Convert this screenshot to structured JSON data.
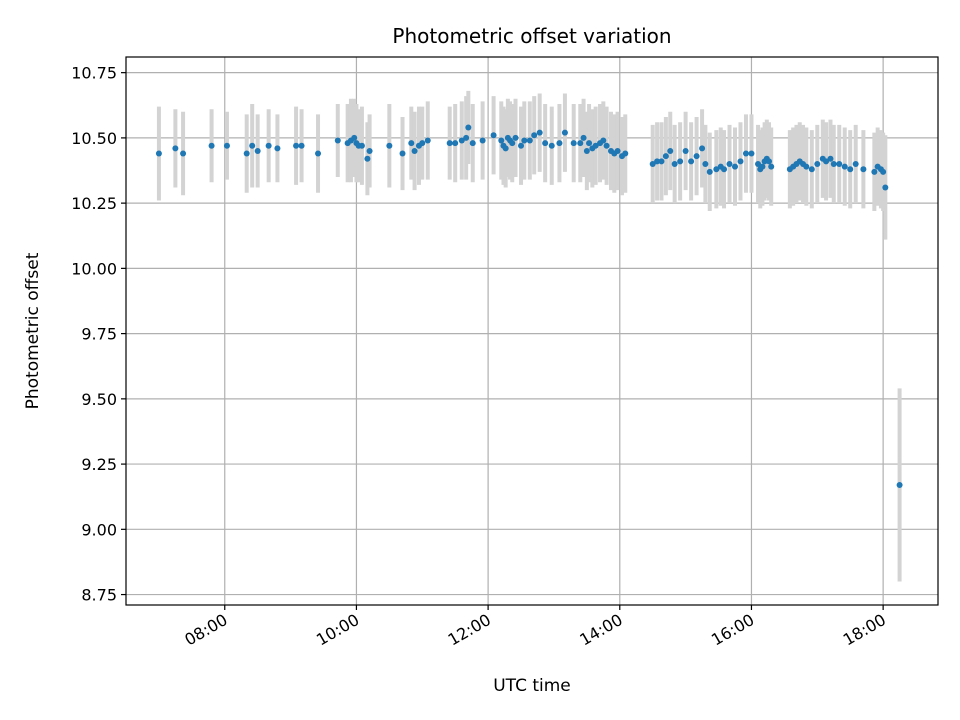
{
  "chart_data": {
    "type": "scatter",
    "title": "Photometric offset variation",
    "xlabel": "UTC time",
    "ylabel": "Photometric offset",
    "x_tick_labels": [
      "08:00",
      "10:00",
      "12:00",
      "14:00",
      "16:00",
      "18:00"
    ],
    "y_tick_labels": [
      "8.75",
      "9.00",
      "9.25",
      "9.50",
      "9.75",
      "10.00",
      "10.25",
      "10.50",
      "10.75"
    ],
    "xlim": [
      "06:30",
      "18:50"
    ],
    "ylim": [
      8.71,
      10.81
    ],
    "grid": true,
    "colors": {
      "point": "#1f77b4",
      "errorbar": "#d3d3d3",
      "grid": "#b0b0b0"
    },
    "series": [
      {
        "x": [
          "07:00",
          "07:15",
          "07:22",
          "07:48",
          "08:02",
          "08:20",
          "08:25",
          "08:30",
          "08:40",
          "08:48",
          "09:05",
          "09:10",
          "09:25",
          "09:43",
          "09:52",
          "09:55",
          "09:58",
          "10:00",
          "10:02",
          "10:05",
          "10:10",
          "10:12",
          "10:30",
          "10:42",
          "10:50",
          "10:53",
          "10:57",
          "11:00",
          "11:05",
          "11:25",
          "11:30",
          "11:36",
          "11:40",
          "11:42",
          "11:46",
          "11:55",
          "12:05",
          "12:12",
          "12:14",
          "12:16",
          "12:18",
          "12:20",
          "12:22",
          "12:25",
          "12:30",
          "12:33",
          "12:38",
          "12:42",
          "12:47",
          "12:52",
          "12:58",
          "13:05",
          "13:10",
          "13:18",
          "13:24",
          "13:27",
          "13:30",
          "13:32",
          "13:35",
          "13:38",
          "13:42",
          "13:45",
          "13:48",
          "13:52",
          "13:55",
          "13:58",
          "14:02",
          "14:05",
          "14:30",
          "14:34",
          "14:38",
          "14:42",
          "14:46",
          "14:50",
          "14:55",
          "15:00",
          "15:05",
          "15:10",
          "15:15",
          "15:18",
          "15:22",
          "15:28",
          "15:32",
          "15:35",
          "15:40",
          "15:45",
          "15:50",
          "15:55",
          "16:00",
          "16:06",
          "16:08",
          "16:10",
          "16:12",
          "16:14",
          "16:16",
          "16:18",
          "16:35",
          "16:38",
          "16:41",
          "16:44",
          "16:47",
          "16:50",
          "16:55",
          "17:00",
          "17:05",
          "17:08",
          "17:12",
          "17:15",
          "17:20",
          "17:25",
          "17:30",
          "17:35",
          "17:42",
          "17:52",
          "17:55",
          "17:58",
          "18:00",
          "18:02",
          "18:15"
        ],
        "y": [
          10.44,
          10.46,
          10.44,
          10.47,
          10.47,
          10.44,
          10.47,
          10.45,
          10.47,
          10.46,
          10.47,
          10.47,
          10.44,
          10.49,
          10.48,
          10.49,
          10.5,
          10.48,
          10.47,
          10.47,
          10.42,
          10.45,
          10.47,
          10.44,
          10.48,
          10.45,
          10.47,
          10.48,
          10.49,
          10.48,
          10.48,
          10.49,
          10.5,
          10.54,
          10.48,
          10.49,
          10.51,
          10.49,
          10.47,
          10.46,
          10.5,
          10.49,
          10.48,
          10.5,
          10.47,
          10.49,
          10.49,
          10.51,
          10.52,
          10.48,
          10.47,
          10.48,
          10.52,
          10.48,
          10.48,
          10.5,
          10.45,
          10.48,
          10.46,
          10.47,
          10.48,
          10.49,
          10.47,
          10.45,
          10.44,
          10.45,
          10.43,
          10.44,
          10.4,
          10.41,
          10.41,
          10.43,
          10.45,
          10.4,
          10.41,
          10.45,
          10.41,
          10.43,
          10.46,
          10.4,
          10.37,
          10.38,
          10.39,
          10.38,
          10.4,
          10.39,
          10.41,
          10.44,
          10.44,
          10.4,
          10.38,
          10.39,
          10.41,
          10.42,
          10.41,
          10.39,
          10.38,
          10.39,
          10.4,
          10.41,
          10.4,
          10.39,
          10.38,
          10.4,
          10.42,
          10.41,
          10.42,
          10.4,
          10.4,
          10.39,
          10.38,
          10.4,
          10.38,
          10.37,
          10.39,
          10.38,
          10.37,
          10.31,
          9.17
        ],
        "yerr": [
          0.18,
          0.15,
          0.16,
          0.14,
          0.13,
          0.15,
          0.16,
          0.14,
          0.14,
          0.13,
          0.15,
          0.14,
          0.15,
          0.14,
          0.15,
          0.16,
          0.15,
          0.15,
          0.14,
          0.15,
          0.14,
          0.14,
          0.16,
          0.14,
          0.14,
          0.15,
          0.15,
          0.14,
          0.15,
          0.14,
          0.15,
          0.15,
          0.16,
          0.14,
          0.15,
          0.15,
          0.15,
          0.15,
          0.15,
          0.15,
          0.15,
          0.15,
          0.15,
          0.15,
          0.15,
          0.15,
          0.15,
          0.15,
          0.15,
          0.15,
          0.15,
          0.15,
          0.15,
          0.15,
          0.15,
          0.15,
          0.15,
          0.15,
          0.15,
          0.15,
          0.15,
          0.15,
          0.15,
          0.15,
          0.15,
          0.15,
          0.15,
          0.15,
          0.15,
          0.15,
          0.15,
          0.15,
          0.15,
          0.15,
          0.15,
          0.15,
          0.15,
          0.15,
          0.15,
          0.15,
          0.15,
          0.15,
          0.15,
          0.15,
          0.15,
          0.15,
          0.15,
          0.15,
          0.15,
          0.15,
          0.15,
          0.15,
          0.15,
          0.15,
          0.15,
          0.15,
          0.15,
          0.15,
          0.15,
          0.15,
          0.15,
          0.15,
          0.15,
          0.15,
          0.15,
          0.15,
          0.15,
          0.15,
          0.15,
          0.15,
          0.15,
          0.15,
          0.15,
          0.15,
          0.15,
          0.15,
          0.15,
          0.2,
          0.37
        ]
      }
    ]
  }
}
